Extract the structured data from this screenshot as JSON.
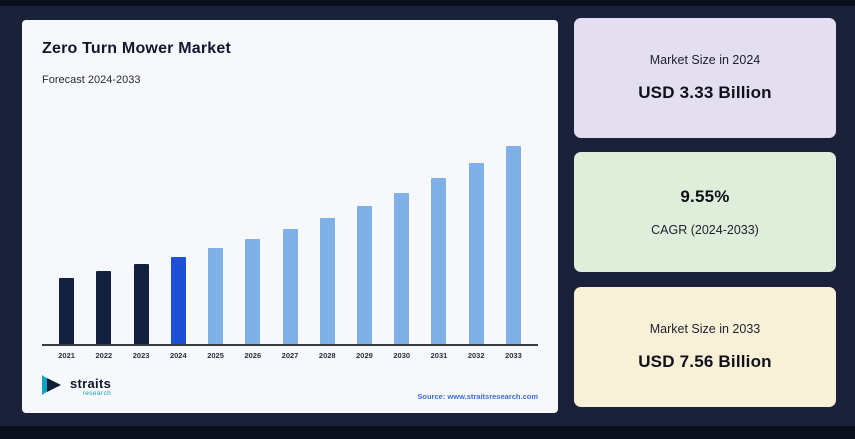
{
  "page": {
    "background": "#1b2138"
  },
  "chart_card": {
    "title": "Zero Turn Mower Market",
    "subtitle": "Forecast 2024-2033",
    "source": "Source: www.straitsresearch.com",
    "logo": {
      "name": "straits",
      "sub": "research"
    }
  },
  "chart_data": {
    "type": "bar",
    "title": "Zero Turn Mower Market",
    "subtitle": "Forecast 2024-2033",
    "categories": [
      "2021",
      "2022",
      "2023",
      "2024",
      "2025",
      "2026",
      "2027",
      "2028",
      "2029",
      "2030",
      "2031",
      "2032",
      "2033"
    ],
    "values": [
      2.53,
      2.77,
      3.04,
      3.33,
      3.65,
      4.0,
      4.38,
      4.8,
      5.26,
      5.76,
      6.31,
      6.91,
      7.56
    ],
    "unit": "USD Billion",
    "ylim": [
      0,
      8
    ],
    "grid": false,
    "legend": "none",
    "highlight_index": 3,
    "colors": {
      "historical": "#14203f",
      "highlight": "#1d4fd7",
      "forecast": "#7fb1e8"
    }
  },
  "stat_cards": [
    {
      "label": "Market Size in 2024",
      "value": "USD 3.33 Billion",
      "bg": "#e4def1",
      "order": "label-first"
    },
    {
      "label": "CAGR (2024-2033)",
      "value": "9.55%",
      "bg": "#dfeeda",
      "order": "value-first"
    },
    {
      "label": "Market Size in 2033",
      "value": "USD 7.56 Billion",
      "bg": "#f8f1d8",
      "order": "label-first"
    }
  ]
}
